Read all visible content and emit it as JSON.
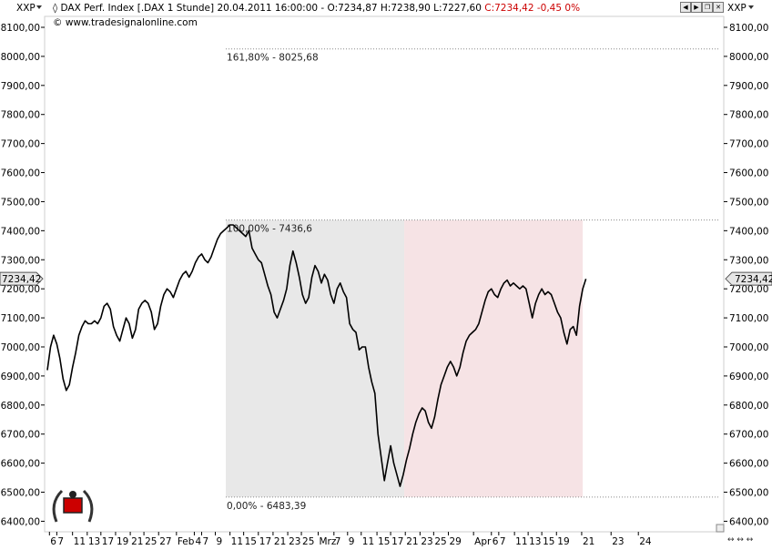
{
  "header": {
    "scale_left": "XXP",
    "scale_right": "XXP",
    "title_text": "DAX Perf. Index [.DAX  1 Stunde] 20.04.2011 16:00:00 - O:7234,87 H:7238,90 L:7227,60",
    "close_text": "C:7234,42 -0,45 0%",
    "copyright": "© www.tradesignalonline.com"
  },
  "colors": {
    "grid_frame": "#cfcfcf",
    "up_zone": "#e8e8e8",
    "down_zone": "#f6e3e5",
    "close_text": "#cc0000",
    "price_line": "#000000"
  },
  "last_price_label": "7234,42",
  "fibonacci": {
    "levels": [
      {
        "label": "161,80% - 8025,68",
        "value": 8025.68
      },
      {
        "label": "100,00% - 7436,6",
        "value": 7436.6
      },
      {
        "label": "0,00% - 6483,39",
        "value": 6483.39
      }
    ],
    "grey_zone_x": [
      17.0,
      34.0
    ],
    "pink_zone_x": [
      34.0,
      51.0
    ]
  },
  "chart_data": {
    "type": "line",
    "title": "DAX Perf. Index [.DAX  1 Stunde]",
    "ylim": [
      6350,
      8150
    ],
    "y_ticks": [
      "6400,00",
      "6500,00",
      "6600,00",
      "6700,00",
      "6800,00",
      "6900,00",
      "7000,00",
      "7100,00",
      "7200,00",
      "7300,00",
      "7400,00",
      "7500,00",
      "7600,00",
      "7700,00",
      "7800,00",
      "7900,00",
      "8000,00",
      "8100,00"
    ],
    "y_tick_values": [
      6400,
      6500,
      6600,
      6700,
      6800,
      6900,
      7000,
      7100,
      7200,
      7300,
      7400,
      7500,
      7600,
      7700,
      7800,
      7900,
      8000,
      8100
    ],
    "x_range": [
      0,
      64
    ],
    "x_ticks": [
      {
        "label": "6",
        "x": 0.2
      },
      {
        "label": "7",
        "x": 0.9
      },
      {
        "label": "11",
        "x": 2.4
      },
      {
        "label": "13",
        "x": 3.8
      },
      {
        "label": "17",
        "x": 5.1
      },
      {
        "label": "19",
        "x": 6.5
      },
      {
        "label": "21",
        "x": 7.9
      },
      {
        "label": "25",
        "x": 9.2
      },
      {
        "label": "27",
        "x": 10.6
      },
      {
        "label": "Feb",
        "x": 12.3
      },
      {
        "label": "4",
        "x": 14.0
      },
      {
        "label": "7",
        "x": 14.7
      },
      {
        "label": "9",
        "x": 16.0
      },
      {
        "label": "11",
        "x": 17.4
      },
      {
        "label": "15",
        "x": 18.7
      },
      {
        "label": "17",
        "x": 20.1
      },
      {
        "label": "21",
        "x": 21.5
      },
      {
        "label": "23",
        "x": 22.9
      },
      {
        "label": "25",
        "x": 24.2
      },
      {
        "label": "Mrz",
        "x": 25.8
      },
      {
        "label": "7",
        "x": 27.3
      },
      {
        "label": "9",
        "x": 28.6
      },
      {
        "label": "11",
        "x": 29.9
      },
      {
        "label": "15",
        "x": 31.4
      },
      {
        "label": "17",
        "x": 32.7
      },
      {
        "label": "21",
        "x": 34.1
      },
      {
        "label": "23",
        "x": 35.5
      },
      {
        "label": "25",
        "x": 36.8
      },
      {
        "label": "29",
        "x": 38.2
      },
      {
        "label": "Apr",
        "x": 40.6
      },
      {
        "label": "6",
        "x": 42.3
      },
      {
        "label": "7",
        "x": 43.0
      },
      {
        "label": "11",
        "x": 44.5
      },
      {
        "label": "13",
        "x": 45.8
      },
      {
        "label": "15",
        "x": 47.1
      },
      {
        "label": "19",
        "x": 48.5
      },
      {
        "label": "21",
        "x": 50.9
      },
      {
        "label": "23",
        "x": 53.7
      },
      {
        "label": "24",
        "x": 56.3
      }
    ],
    "series": [
      {
        "values": [
          [
            0,
            6920
          ],
          [
            0.3,
            7000
          ],
          [
            0.6,
            7040
          ],
          [
            0.9,
            7010
          ],
          [
            1.2,
            6960
          ],
          [
            1.5,
            6890
          ],
          [
            1.8,
            6850
          ],
          [
            2.1,
            6870
          ],
          [
            2.4,
            6930
          ],
          [
            2.7,
            6980
          ],
          [
            3.0,
            7040
          ],
          [
            3.3,
            7070
          ],
          [
            3.6,
            7090
          ],
          [
            3.9,
            7080
          ],
          [
            4.2,
            7080
          ],
          [
            4.5,
            7090
          ],
          [
            4.8,
            7080
          ],
          [
            5.1,
            7100
          ],
          [
            5.4,
            7140
          ],
          [
            5.7,
            7150
          ],
          [
            6.0,
            7130
          ],
          [
            6.3,
            7070
          ],
          [
            6.6,
            7040
          ],
          [
            6.9,
            7020
          ],
          [
            7.2,
            7060
          ],
          [
            7.5,
            7100
          ],
          [
            7.8,
            7080
          ],
          [
            8.1,
            7030
          ],
          [
            8.4,
            7060
          ],
          [
            8.7,
            7130
          ],
          [
            9.0,
            7150
          ],
          [
            9.3,
            7160
          ],
          [
            9.6,
            7150
          ],
          [
            9.9,
            7120
          ],
          [
            10.2,
            7060
          ],
          [
            10.5,
            7080
          ],
          [
            10.8,
            7140
          ],
          [
            11.1,
            7180
          ],
          [
            11.4,
            7200
          ],
          [
            11.7,
            7190
          ],
          [
            12.0,
            7170
          ],
          [
            12.3,
            7200
          ],
          [
            12.6,
            7230
          ],
          [
            12.9,
            7250
          ],
          [
            13.2,
            7260
          ],
          [
            13.5,
            7240
          ],
          [
            13.8,
            7260
          ],
          [
            14.1,
            7290
          ],
          [
            14.4,
            7310
          ],
          [
            14.7,
            7320
          ],
          [
            15.0,
            7300
          ],
          [
            15.3,
            7290
          ],
          [
            15.6,
            7310
          ],
          [
            15.9,
            7340
          ],
          [
            16.2,
            7370
          ],
          [
            16.5,
            7390
          ],
          [
            16.8,
            7400
          ],
          [
            17.1,
            7410
          ],
          [
            17.4,
            7420
          ],
          [
            17.7,
            7420
          ],
          [
            18.0,
            7410
          ],
          [
            18.3,
            7400
          ],
          [
            18.6,
            7390
          ],
          [
            18.9,
            7380
          ],
          [
            19.2,
            7400
          ],
          [
            19.5,
            7340
          ],
          [
            19.8,
            7320
          ],
          [
            20.1,
            7300
          ],
          [
            20.4,
            7290
          ],
          [
            20.7,
            7250
          ],
          [
            21.0,
            7210
          ],
          [
            21.3,
            7180
          ],
          [
            21.6,
            7120
          ],
          [
            21.9,
            7100
          ],
          [
            22.2,
            7130
          ],
          [
            22.5,
            7160
          ],
          [
            22.8,
            7200
          ],
          [
            23.1,
            7280
          ],
          [
            23.4,
            7330
          ],
          [
            23.7,
            7290
          ],
          [
            24.0,
            7240
          ],
          [
            24.3,
            7180
          ],
          [
            24.6,
            7150
          ],
          [
            24.9,
            7170
          ],
          [
            25.2,
            7240
          ],
          [
            25.5,
            7280
          ],
          [
            25.8,
            7260
          ],
          [
            26.1,
            7220
          ],
          [
            26.4,
            7250
          ],
          [
            26.7,
            7230
          ],
          [
            27.0,
            7180
          ],
          [
            27.3,
            7150
          ],
          [
            27.6,
            7200
          ],
          [
            27.9,
            7220
          ],
          [
            28.2,
            7190
          ],
          [
            28.5,
            7170
          ],
          [
            28.8,
            7080
          ],
          [
            29.1,
            7060
          ],
          [
            29.4,
            7050
          ],
          [
            29.7,
            6990
          ],
          [
            30.0,
            7000
          ],
          [
            30.3,
            7000
          ],
          [
            30.6,
            6930
          ],
          [
            30.9,
            6880
          ],
          [
            31.2,
            6840
          ],
          [
            31.5,
            6700
          ],
          [
            31.8,
            6620
          ],
          [
            32.1,
            6540
          ],
          [
            32.4,
            6600
          ],
          [
            32.7,
            6660
          ],
          [
            33.0,
            6600
          ],
          [
            33.3,
            6560
          ],
          [
            33.6,
            6520
          ],
          [
            33.9,
            6560
          ],
          [
            34.2,
            6610
          ],
          [
            34.5,
            6650
          ],
          [
            34.8,
            6700
          ],
          [
            35.1,
            6740
          ],
          [
            35.4,
            6770
          ],
          [
            35.7,
            6790
          ],
          [
            36.0,
            6780
          ],
          [
            36.3,
            6740
          ],
          [
            36.6,
            6720
          ],
          [
            36.9,
            6760
          ],
          [
            37.2,
            6820
          ],
          [
            37.5,
            6870
          ],
          [
            37.8,
            6900
          ],
          [
            38.1,
            6930
          ],
          [
            38.4,
            6950
          ],
          [
            38.7,
            6930
          ],
          [
            39.0,
            6900
          ],
          [
            39.3,
            6930
          ],
          [
            39.6,
            6980
          ],
          [
            39.9,
            7020
          ],
          [
            40.2,
            7040
          ],
          [
            40.5,
            7050
          ],
          [
            40.8,
            7060
          ],
          [
            41.1,
            7080
          ],
          [
            41.4,
            7120
          ],
          [
            41.7,
            7160
          ],
          [
            42.0,
            7190
          ],
          [
            42.3,
            7200
          ],
          [
            42.6,
            7180
          ],
          [
            42.9,
            7170
          ],
          [
            43.2,
            7200
          ],
          [
            43.5,
            7220
          ],
          [
            43.8,
            7230
          ],
          [
            44.1,
            7210
          ],
          [
            44.4,
            7220
          ],
          [
            44.7,
            7210
          ],
          [
            45.0,
            7200
          ],
          [
            45.3,
            7210
          ],
          [
            45.6,
            7200
          ],
          [
            45.9,
            7150
          ],
          [
            46.2,
            7100
          ],
          [
            46.5,
            7150
          ],
          [
            46.8,
            7180
          ],
          [
            47.1,
            7200
          ],
          [
            47.4,
            7180
          ],
          [
            47.7,
            7190
          ],
          [
            48.0,
            7180
          ],
          [
            48.3,
            7150
          ],
          [
            48.6,
            7120
          ],
          [
            48.9,
            7100
          ],
          [
            49.2,
            7050
          ],
          [
            49.5,
            7010
          ],
          [
            49.8,
            7060
          ],
          [
            50.1,
            7070
          ],
          [
            50.4,
            7040
          ],
          [
            50.7,
            7140
          ],
          [
            51.0,
            7200
          ],
          [
            51.3,
            7234.42
          ]
        ]
      }
    ],
    "last_value": 7234.42
  }
}
